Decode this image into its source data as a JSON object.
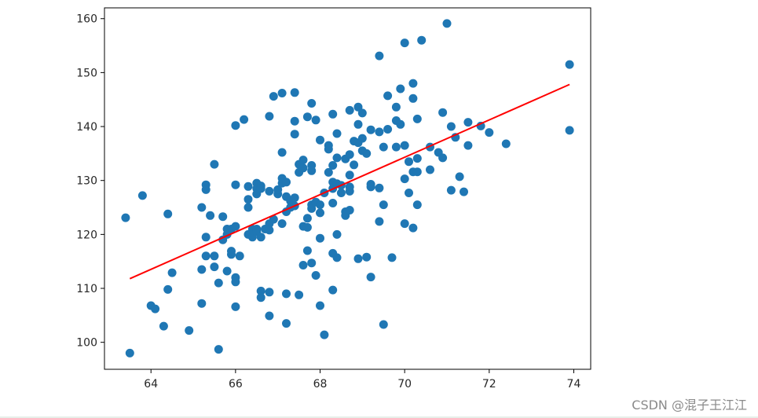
{
  "chart_data": {
    "type": "scatter",
    "title": "",
    "xlabel": "",
    "ylabel": "",
    "xlim": [
      62.9,
      74.4
    ],
    "ylim": [
      95,
      162
    ],
    "xticks": [
      64,
      66,
      68,
      70,
      72,
      74
    ],
    "yticks": [
      100,
      110,
      120,
      130,
      140,
      150,
      160
    ],
    "grid": false,
    "colors": {
      "points": "#1f77b4",
      "fit_line": "#ff0000"
    },
    "series": [
      {
        "type": "scatter",
        "points": [
          [
            63.4,
            123.1
          ],
          [
            63.5,
            98.0
          ],
          [
            63.8,
            127.2
          ],
          [
            64.0,
            106.8
          ],
          [
            64.1,
            106.2
          ],
          [
            64.3,
            103.0
          ],
          [
            64.4,
            109.8
          ],
          [
            64.4,
            123.8
          ],
          [
            64.5,
            112.9
          ],
          [
            64.9,
            102.2
          ],
          [
            65.2,
            113.5
          ],
          [
            65.2,
            125.0
          ],
          [
            65.2,
            107.2
          ],
          [
            65.3,
            129.2
          ],
          [
            65.3,
            128.3
          ],
          [
            65.3,
            119.5
          ],
          [
            65.3,
            116.0
          ],
          [
            65.4,
            123.5
          ],
          [
            65.5,
            116.0
          ],
          [
            65.5,
            114.0
          ],
          [
            65.5,
            133.0
          ],
          [
            65.6,
            111.0
          ],
          [
            65.6,
            98.7
          ],
          [
            65.7,
            123.3
          ],
          [
            65.7,
            119.0
          ],
          [
            65.8,
            113.2
          ],
          [
            65.8,
            121.0
          ],
          [
            65.8,
            120.0
          ],
          [
            65.9,
            116.3
          ],
          [
            65.9,
            116.9
          ],
          [
            65.9,
            121.0
          ],
          [
            66.0,
            112.0
          ],
          [
            66.0,
            111.2
          ],
          [
            66.0,
            106.6
          ],
          [
            66.0,
            129.2
          ],
          [
            66.0,
            140.2
          ],
          [
            66.0,
            121.5
          ],
          [
            66.1,
            116.0
          ],
          [
            66.2,
            141.3
          ],
          [
            66.3,
            128.9
          ],
          [
            66.3,
            125.0
          ],
          [
            66.3,
            126.5
          ],
          [
            66.3,
            120.0
          ],
          [
            66.4,
            119.5
          ],
          [
            66.4,
            121.0
          ],
          [
            66.5,
            129.5
          ],
          [
            66.5,
            128.5
          ],
          [
            66.5,
            127.5
          ],
          [
            66.5,
            121.0
          ],
          [
            66.5,
            120.5
          ],
          [
            66.6,
            129.0
          ],
          [
            66.6,
            128.5
          ],
          [
            66.6,
            119.5
          ],
          [
            66.6,
            109.5
          ],
          [
            66.6,
            108.3
          ],
          [
            66.7,
            121.0
          ],
          [
            66.8,
            128.0
          ],
          [
            66.8,
            122.0
          ],
          [
            66.8,
            120.8
          ],
          [
            66.8,
            141.9
          ],
          [
            66.8,
            109.3
          ],
          [
            66.8,
            104.9
          ],
          [
            66.9,
            145.6
          ],
          [
            66.9,
            122.8
          ],
          [
            67.0,
            127.5
          ],
          [
            67.0,
            128.3
          ],
          [
            67.1,
            146.2
          ],
          [
            67.1,
            135.2
          ],
          [
            67.1,
            130.4
          ],
          [
            67.1,
            129.5
          ],
          [
            67.1,
            122.0
          ],
          [
            67.2,
            127.0
          ],
          [
            67.2,
            129.7
          ],
          [
            67.2,
            124.2
          ],
          [
            67.2,
            109.0
          ],
          [
            67.2,
            103.5
          ],
          [
            67.3,
            126.2
          ],
          [
            67.3,
            125.0
          ],
          [
            67.4,
            141.0
          ],
          [
            67.4,
            146.3
          ],
          [
            67.4,
            138.6
          ],
          [
            67.4,
            126.8
          ],
          [
            67.4,
            125.3
          ],
          [
            67.5,
            131.5
          ],
          [
            67.5,
            133.0
          ],
          [
            67.5,
            108.8
          ],
          [
            67.6,
            133.8
          ],
          [
            67.6,
            132.3
          ],
          [
            67.6,
            121.5
          ],
          [
            67.6,
            114.3
          ],
          [
            67.7,
            141.8
          ],
          [
            67.7,
            123.0
          ],
          [
            67.7,
            121.3
          ],
          [
            67.7,
            117.0
          ],
          [
            67.8,
            144.3
          ],
          [
            67.8,
            132.8
          ],
          [
            67.8,
            131.8
          ],
          [
            67.8,
            125.5
          ],
          [
            67.8,
            124.8
          ],
          [
            67.8,
            114.7
          ],
          [
            67.9,
            141.2
          ],
          [
            67.9,
            126.0
          ],
          [
            67.9,
            112.4
          ],
          [
            68.0,
            137.5
          ],
          [
            68.0,
            125.5
          ],
          [
            68.0,
            124.0
          ],
          [
            68.0,
            119.3
          ],
          [
            68.0,
            106.8
          ],
          [
            68.1,
            127.7
          ],
          [
            68.1,
            101.4
          ],
          [
            68.2,
            136.5
          ],
          [
            68.2,
            135.8
          ],
          [
            68.2,
            131.5
          ],
          [
            68.3,
            142.3
          ],
          [
            68.3,
            132.8
          ],
          [
            68.3,
            129.7
          ],
          [
            68.3,
            128.5
          ],
          [
            68.3,
            125.8
          ],
          [
            68.3,
            116.5
          ],
          [
            68.3,
            109.7
          ],
          [
            68.4,
            138.7
          ],
          [
            68.4,
            134.2
          ],
          [
            68.4,
            129.4
          ],
          [
            68.4,
            120.0
          ],
          [
            68.4,
            115.7
          ],
          [
            68.5,
            129.1
          ],
          [
            68.5,
            127.7
          ],
          [
            68.6,
            134.0
          ],
          [
            68.6,
            124.2
          ],
          [
            68.6,
            123.5
          ],
          [
            68.7,
            143.0
          ],
          [
            68.7,
            134.8
          ],
          [
            68.7,
            131.0
          ],
          [
            68.7,
            128.8
          ],
          [
            68.7,
            128.0
          ],
          [
            68.7,
            124.5
          ],
          [
            68.8,
            132.9
          ],
          [
            68.8,
            137.3
          ],
          [
            68.9,
            143.6
          ],
          [
            68.9,
            140.4
          ],
          [
            68.9,
            137.0
          ],
          [
            68.9,
            115.5
          ],
          [
            69.0,
            142.5
          ],
          [
            69.0,
            137.8
          ],
          [
            69.0,
            135.5
          ],
          [
            69.1,
            135.0
          ],
          [
            69.1,
            115.8
          ],
          [
            69.2,
            139.4
          ],
          [
            69.2,
            129.3
          ],
          [
            69.2,
            128.8
          ],
          [
            69.2,
            112.1
          ],
          [
            69.4,
            153.1
          ],
          [
            69.4,
            139.0
          ],
          [
            69.4,
            128.6
          ],
          [
            69.4,
            122.4
          ],
          [
            69.5,
            136.2
          ],
          [
            69.5,
            125.5
          ],
          [
            69.5,
            103.3
          ],
          [
            69.6,
            145.7
          ],
          [
            69.6,
            139.5
          ],
          [
            69.7,
            115.7
          ],
          [
            69.8,
            143.6
          ],
          [
            69.8,
            141.1
          ],
          [
            69.8,
            136.2
          ],
          [
            69.9,
            147.0
          ],
          [
            69.9,
            140.4
          ],
          [
            70.0,
            136.5
          ],
          [
            70.0,
            130.3
          ],
          [
            70.0,
            122.0
          ],
          [
            70.0,
            155.5
          ],
          [
            70.1,
            133.5
          ],
          [
            70.1,
            127.7
          ],
          [
            70.2,
            131.6
          ],
          [
            70.2,
            121.2
          ],
          [
            70.2,
            145.2
          ],
          [
            70.2,
            148.0
          ],
          [
            70.3,
            141.4
          ],
          [
            70.3,
            134.1
          ],
          [
            70.3,
            131.6
          ],
          [
            70.3,
            125.5
          ],
          [
            70.4,
            156.0
          ],
          [
            70.6,
            136.2
          ],
          [
            70.6,
            132.0
          ],
          [
            70.8,
            135.2
          ],
          [
            70.9,
            134.2
          ],
          [
            70.9,
            142.6
          ],
          [
            71.0,
            159.1
          ],
          [
            71.1,
            140.0
          ],
          [
            71.1,
            128.2
          ],
          [
            71.2,
            138.0
          ],
          [
            71.3,
            130.7
          ],
          [
            71.4,
            127.9
          ],
          [
            71.5,
            140.8
          ],
          [
            71.5,
            136.5
          ],
          [
            71.8,
            140.1
          ],
          [
            72.0,
            138.9
          ],
          [
            72.4,
            136.8
          ],
          [
            73.9,
            139.3
          ],
          [
            73.9,
            151.5
          ]
        ]
      },
      {
        "type": "line",
        "points": [
          [
            63.5,
            111.8
          ],
          [
            73.9,
            147.8
          ]
        ]
      }
    ]
  },
  "watermark": "CSDN @混子王江江"
}
